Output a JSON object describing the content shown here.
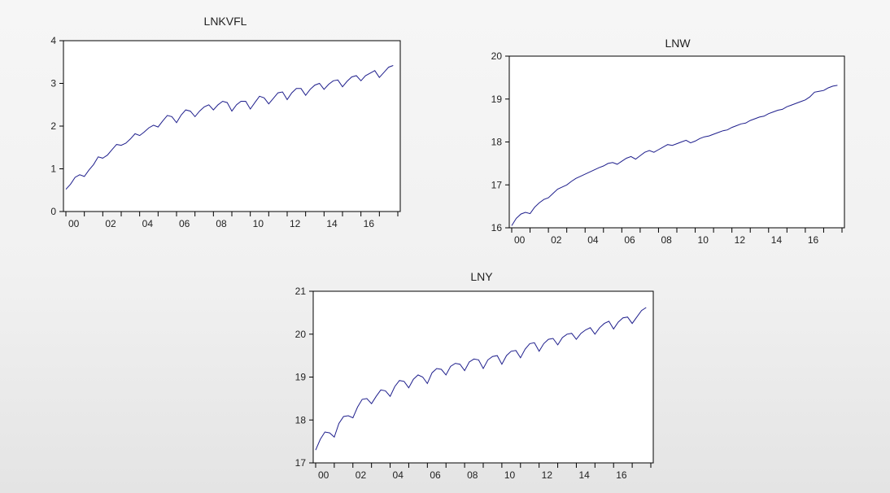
{
  "chart_data": [
    {
      "type": "line",
      "title": "LNKVFL",
      "xlabel": "",
      "ylabel": "",
      "ylim": [
        0,
        4
      ],
      "yticks": [
        0,
        1,
        2,
        3,
        4
      ],
      "xlim": [
        2000,
        2018
      ],
      "xtick_labels": [
        "00",
        "02",
        "04",
        "06",
        "08",
        "10",
        "12",
        "14",
        "16"
      ],
      "grid": false,
      "line_color": "#1e1e8c",
      "series": [
        {
          "x_start": 2000,
          "x_step": 0.25,
          "values": [
            0.52,
            0.64,
            0.8,
            0.86,
            0.82,
            0.97,
            1.1,
            1.28,
            1.25,
            1.32,
            1.45,
            1.57,
            1.55,
            1.6,
            1.7,
            1.82,
            1.78,
            1.86,
            1.96,
            2.02,
            1.98,
            2.12,
            2.25,
            2.22,
            2.08,
            2.26,
            2.38,
            2.35,
            2.22,
            2.35,
            2.45,
            2.5,
            2.38,
            2.5,
            2.58,
            2.55,
            2.35,
            2.5,
            2.58,
            2.58,
            2.4,
            2.55,
            2.7,
            2.66,
            2.52,
            2.65,
            2.78,
            2.8,
            2.62,
            2.78,
            2.88,
            2.88,
            2.72,
            2.86,
            2.96,
            3.0,
            2.86,
            2.98,
            3.06,
            3.08,
            2.92,
            3.05,
            3.15,
            3.18,
            3.06,
            3.18,
            3.24,
            3.3,
            3.14,
            3.26,
            3.38,
            3.42
          ]
        }
      ]
    },
    {
      "type": "line",
      "title": "LNW",
      "xlabel": "",
      "ylabel": "",
      "ylim": [
        16,
        20
      ],
      "yticks": [
        16,
        17,
        18,
        19,
        20
      ],
      "xlim": [
        2000,
        2018
      ],
      "xtick_labels": [
        "00",
        "02",
        "04",
        "06",
        "08",
        "10",
        "12",
        "14",
        "16"
      ],
      "grid": false,
      "line_color": "#1e1e8c",
      "series": [
        {
          "x_start": 2000,
          "x_step": 0.25,
          "values": [
            16.05,
            16.22,
            16.32,
            16.36,
            16.33,
            16.48,
            16.58,
            16.66,
            16.7,
            16.8,
            16.9,
            16.95,
            17.0,
            17.08,
            17.15,
            17.2,
            17.25,
            17.3,
            17.35,
            17.4,
            17.44,
            17.5,
            17.52,
            17.48,
            17.55,
            17.62,
            17.66,
            17.6,
            17.68,
            17.76,
            17.8,
            17.76,
            17.82,
            17.88,
            17.94,
            17.92,
            17.96,
            18.0,
            18.04,
            17.98,
            18.02,
            18.08,
            18.12,
            18.14,
            18.18,
            18.22,
            18.26,
            18.28,
            18.34,
            18.38,
            18.42,
            18.44,
            18.5,
            18.54,
            18.58,
            18.6,
            18.66,
            18.7,
            18.74,
            18.76,
            18.82,
            18.86,
            18.9,
            18.94,
            18.98,
            19.05,
            19.16,
            19.18,
            19.2,
            19.26,
            19.3,
            19.32
          ]
        }
      ]
    },
    {
      "type": "line",
      "title": "LNY",
      "xlabel": "",
      "ylabel": "",
      "ylim": [
        17,
        21
      ],
      "yticks": [
        17,
        18,
        19,
        20,
        21
      ],
      "xlim": [
        2000,
        2018
      ],
      "xtick_labels": [
        "00",
        "02",
        "04",
        "06",
        "08",
        "10",
        "12",
        "14",
        "16"
      ],
      "grid": false,
      "line_color": "#1e1e8c",
      "series": [
        {
          "x_start": 2000,
          "x_step": 0.25,
          "values": [
            17.3,
            17.55,
            17.72,
            17.7,
            17.6,
            17.92,
            18.08,
            18.1,
            18.05,
            18.3,
            18.48,
            18.5,
            18.38,
            18.55,
            18.7,
            18.68,
            18.55,
            18.78,
            18.92,
            18.9,
            18.75,
            18.95,
            19.05,
            19.0,
            18.85,
            19.1,
            19.2,
            19.18,
            19.05,
            19.25,
            19.32,
            19.3,
            19.15,
            19.35,
            19.42,
            19.4,
            19.2,
            19.4,
            19.48,
            19.5,
            19.3,
            19.5,
            19.6,
            19.62,
            19.45,
            19.65,
            19.78,
            19.8,
            19.6,
            19.78,
            19.88,
            19.9,
            19.75,
            19.92,
            20.0,
            20.02,
            19.88,
            20.02,
            20.1,
            20.15,
            20.0,
            20.15,
            20.25,
            20.3,
            20.12,
            20.28,
            20.38,
            20.4,
            20.25,
            20.4,
            20.55,
            20.62
          ]
        }
      ]
    }
  ]
}
